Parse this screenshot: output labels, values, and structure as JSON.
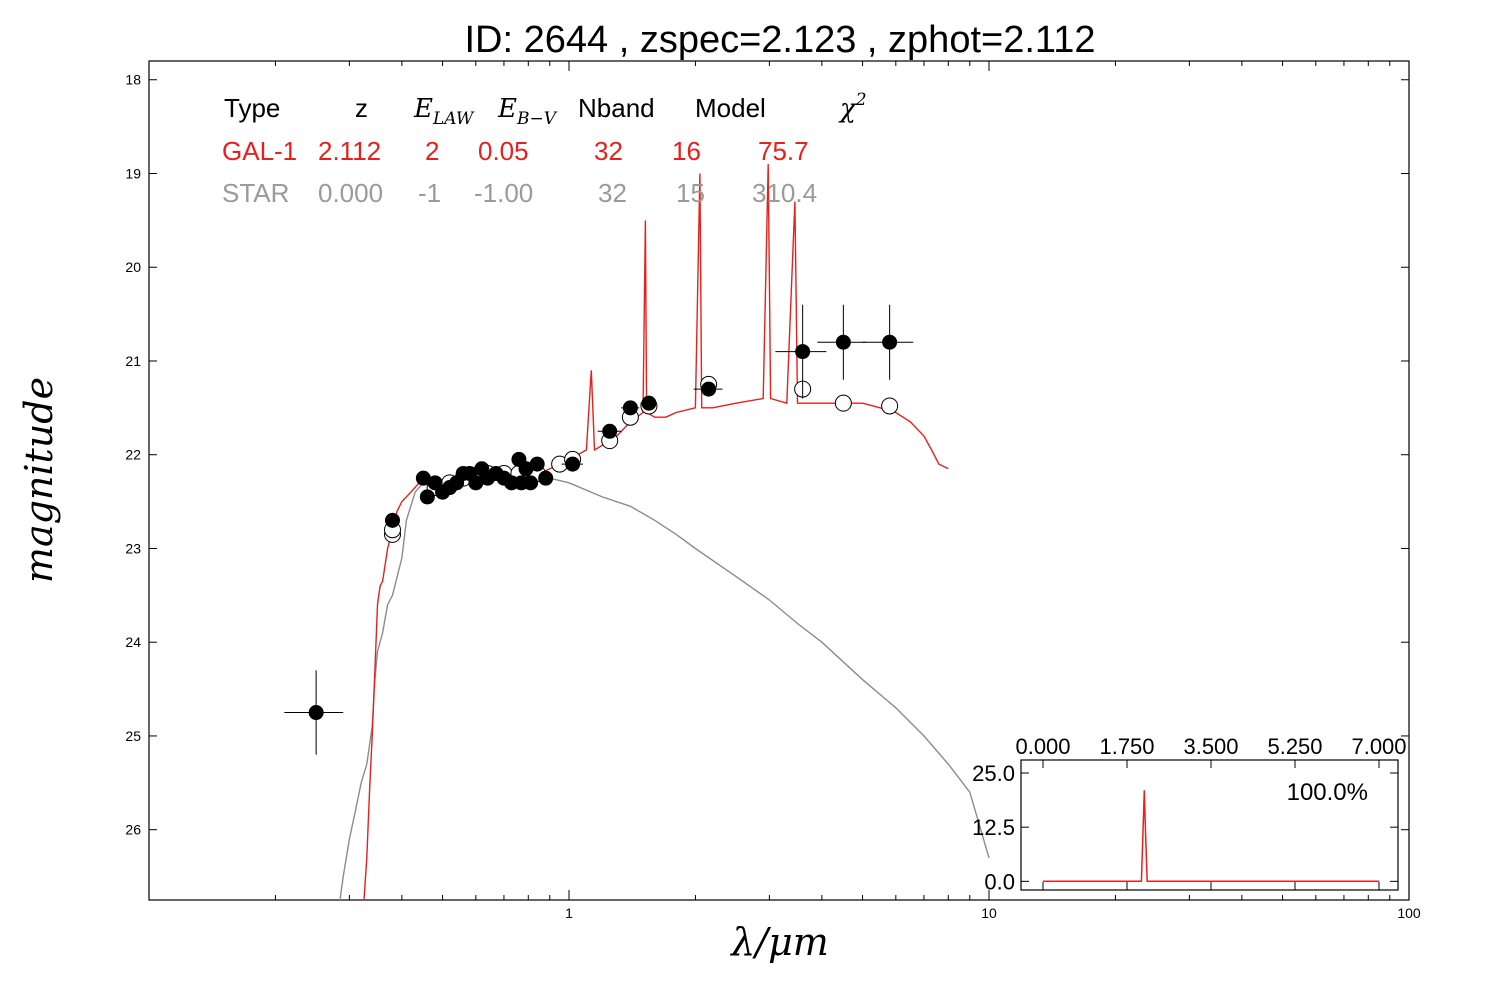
{
  "title": "ID:  2644  , zspec=2.123 , zphot=2.112",
  "colors": {
    "gal": "#e8201c",
    "star": "#8c8c8c",
    "axis": "#000000"
  },
  "chart_data": [
    {
      "type": "scatter",
      "xlabel": "λ/μm",
      "ylabel": "magnitude",
      "xscale": "log",
      "xlim": [
        0.1,
        100
      ],
      "ylim": [
        26.75,
        17.8
      ],
      "y_inverted": true,
      "xticks": [
        1,
        10,
        100
      ],
      "xtick_labels": [
        "1",
        "10",
        "100"
      ],
      "yticks": [
        18,
        19,
        20,
        21,
        22,
        23,
        24,
        25,
        26
      ],
      "ytick_labels": [
        "18",
        "19",
        "20",
        "21",
        "22",
        "23",
        "24",
        "25",
        "26"
      ],
      "grid": false,
      "table": {
        "headers": [
          "Type",
          "z",
          "E_LAW",
          "E_B−V",
          "Nband",
          "Model",
          "χ²"
        ],
        "rows": [
          {
            "type": "GAL-1",
            "z": "2.112",
            "elaw": "2",
            "ebv": "0.05",
            "nband": "32",
            "model": "16",
            "chi2": "75.7"
          },
          {
            "type": "STAR",
            "z": "0.000",
            "elaw": "-1",
            "ebv": "-1.00",
            "nband": "32",
            "model": "15",
            "chi2": "310.4"
          }
        ]
      },
      "observed": [
        {
          "x": 0.25,
          "y": 24.75,
          "xerr": [
            0.21,
            0.29
          ],
          "yerr": 0.45
        },
        {
          "x": 0.38,
          "y": 22.7,
          "xerr": [
            0.37,
            0.39
          ],
          "yerr": 0.08
        },
        {
          "x": 0.45,
          "y": 22.25,
          "xerr": [
            0.44,
            0.46
          ],
          "yerr": 0.05
        },
        {
          "x": 0.46,
          "y": 22.45,
          "xerr": [
            0.45,
            0.47
          ],
          "yerr": 0.05
        },
        {
          "x": 0.48,
          "y": 22.3,
          "xerr": [
            0.47,
            0.49
          ],
          "yerr": 0.05
        },
        {
          "x": 0.5,
          "y": 22.4,
          "xerr": [
            0.49,
            0.51
          ],
          "yerr": 0.05
        },
        {
          "x": 0.52,
          "y": 22.35,
          "xerr": [
            0.51,
            0.53
          ],
          "yerr": 0.05
        },
        {
          "x": 0.54,
          "y": 22.3,
          "xerr": [
            0.53,
            0.55
          ],
          "yerr": 0.05
        },
        {
          "x": 0.56,
          "y": 22.2,
          "xerr": [
            0.55,
            0.57
          ],
          "yerr": 0.05
        },
        {
          "x": 0.58,
          "y": 22.2,
          "xerr": [
            0.57,
            0.59
          ],
          "yerr": 0.05
        },
        {
          "x": 0.6,
          "y": 22.3,
          "xerr": [
            0.59,
            0.61
          ],
          "yerr": 0.05
        },
        {
          "x": 0.62,
          "y": 22.15,
          "xerr": [
            0.61,
            0.63
          ],
          "yerr": 0.05
        },
        {
          "x": 0.64,
          "y": 22.25,
          "xerr": [
            0.63,
            0.65
          ],
          "yerr": 0.05
        },
        {
          "x": 0.67,
          "y": 22.2,
          "xerr": [
            0.66,
            0.68
          ],
          "yerr": 0.05
        },
        {
          "x": 0.7,
          "y": 22.25,
          "xerr": [
            0.69,
            0.71
          ],
          "yerr": 0.05
        },
        {
          "x": 0.73,
          "y": 22.3,
          "xerr": [
            0.72,
            0.74
          ],
          "yerr": 0.05
        },
        {
          "x": 0.76,
          "y": 22.05,
          "xerr": [
            0.75,
            0.77
          ],
          "yerr": 0.05
        },
        {
          "x": 0.77,
          "y": 22.3,
          "xerr": [
            0.76,
            0.78
          ],
          "yerr": 0.05
        },
        {
          "x": 0.79,
          "y": 22.15,
          "xerr": [
            0.78,
            0.8
          ],
          "yerr": 0.05
        },
        {
          "x": 0.81,
          "y": 22.3,
          "xerr": [
            0.8,
            0.82
          ],
          "yerr": 0.05
        },
        {
          "x": 0.84,
          "y": 22.1,
          "xerr": [
            0.83,
            0.85
          ],
          "yerr": 0.05
        },
        {
          "x": 0.88,
          "y": 22.25,
          "xerr": [
            0.87,
            0.89
          ],
          "yerr": 0.05
        },
        {
          "x": 1.02,
          "y": 22.1,
          "xerr": [
            0.96,
            1.08
          ],
          "yerr": 0.08
        },
        {
          "x": 1.25,
          "y": 21.75,
          "xerr": [
            1.17,
            1.33
          ],
          "yerr": 0.05
        },
        {
          "x": 1.4,
          "y": 21.5,
          "xerr": [
            1.33,
            1.47
          ],
          "yerr": 0.05
        },
        {
          "x": 1.55,
          "y": 21.45,
          "xerr": [
            1.48,
            1.62
          ],
          "yerr": 0.05
        },
        {
          "x": 2.15,
          "y": 21.3,
          "xerr": [
            1.98,
            2.32
          ],
          "yerr": 0.05
        },
        {
          "x": 3.6,
          "y": 20.9,
          "xerr": [
            3.1,
            4.1
          ],
          "yerr": 0.5
        },
        {
          "x": 4.5,
          "y": 20.8,
          "xerr": [
            3.9,
            5.1
          ],
          "yerr": 0.4
        },
        {
          "x": 5.8,
          "y": 20.8,
          "xerr": [
            5.0,
            6.6
          ],
          "yerr": 0.4
        }
      ],
      "model_points": [
        {
          "x": 0.38,
          "y": 22.85
        },
        {
          "x": 0.38,
          "y": 22.8
        },
        {
          "x": 0.48,
          "y": 22.35
        },
        {
          "x": 0.52,
          "y": 22.3
        },
        {
          "x": 0.56,
          "y": 22.25
        },
        {
          "x": 0.6,
          "y": 22.22
        },
        {
          "x": 0.64,
          "y": 22.2
        },
        {
          "x": 0.7,
          "y": 22.2
        },
        {
          "x": 0.76,
          "y": 22.2
        },
        {
          "x": 0.84,
          "y": 22.2
        },
        {
          "x": 0.95,
          "y": 22.1
        },
        {
          "x": 1.02,
          "y": 22.05
        },
        {
          "x": 1.25,
          "y": 21.85
        },
        {
          "x": 1.4,
          "y": 21.6
        },
        {
          "x": 1.55,
          "y": 21.48
        },
        {
          "x": 2.15,
          "y": 21.25
        },
        {
          "x": 3.6,
          "y": 21.3
        },
        {
          "x": 4.5,
          "y": 21.45
        },
        {
          "x": 5.8,
          "y": 21.48
        }
      ],
      "gal_spectrum": [
        [
          0.325,
          26.75
        ],
        [
          0.33,
          26.3
        ],
        [
          0.335,
          25.6
        ],
        [
          0.34,
          25.0
        ],
        [
          0.345,
          24.3
        ],
        [
          0.35,
          23.6
        ],
        [
          0.355,
          23.4
        ],
        [
          0.36,
          23.35
        ],
        [
          0.37,
          23.0
        ],
        [
          0.38,
          22.8
        ],
        [
          0.39,
          22.6
        ],
        [
          0.4,
          22.5
        ],
        [
          0.42,
          22.4
        ],
        [
          0.44,
          22.3
        ],
        [
          0.47,
          22.32
        ],
        [
          0.5,
          22.3
        ],
        [
          0.55,
          22.27
        ],
        [
          0.6,
          22.25
        ],
        [
          0.65,
          22.25
        ],
        [
          0.7,
          22.27
        ],
        [
          0.75,
          22.25
        ],
        [
          0.8,
          22.22
        ],
        [
          0.85,
          22.2
        ],
        [
          0.9,
          22.15
        ],
        [
          0.95,
          22.1
        ],
        [
          1.0,
          22.0
        ],
        [
          1.05,
          22.0
        ],
        [
          1.1,
          21.95
        ],
        [
          1.13,
          21.1
        ],
        [
          1.15,
          21.95
        ],
        [
          1.2,
          21.9
        ],
        [
          1.3,
          21.8
        ],
        [
          1.4,
          21.65
        ],
        [
          1.5,
          21.55
        ],
        [
          1.52,
          19.5
        ],
        [
          1.53,
          21.55
        ],
        [
          1.6,
          21.6
        ],
        [
          1.7,
          21.6
        ],
        [
          1.8,
          21.55
        ],
        [
          2.0,
          21.5
        ],
        [
          2.05,
          19.0
        ],
        [
          2.07,
          21.5
        ],
        [
          2.2,
          21.5
        ],
        [
          2.5,
          21.45
        ],
        [
          2.9,
          21.4
        ],
        [
          2.98,
          18.9
        ],
        [
          3.02,
          21.4
        ],
        [
          3.3,
          21.45
        ],
        [
          3.45,
          19.3
        ],
        [
          3.5,
          21.45
        ],
        [
          4.0,
          21.45
        ],
        [
          4.5,
          21.45
        ],
        [
          5.0,
          21.45
        ],
        [
          5.5,
          21.5
        ],
        [
          6.0,
          21.55
        ],
        [
          6.5,
          21.65
        ],
        [
          7.0,
          21.8
        ],
        [
          7.3,
          21.95
        ],
        [
          7.6,
          22.1
        ],
        [
          8.0,
          22.15
        ]
      ],
      "star_spectrum": [
        [
          0.285,
          26.75
        ],
        [
          0.29,
          26.5
        ],
        [
          0.3,
          26.1
        ],
        [
          0.31,
          25.8
        ],
        [
          0.32,
          25.5
        ],
        [
          0.33,
          25.3
        ],
        [
          0.34,
          24.9
        ],
        [
          0.345,
          24.4
        ],
        [
          0.35,
          24.1
        ],
        [
          0.36,
          23.9
        ],
        [
          0.37,
          23.6
        ],
        [
          0.38,
          23.5
        ],
        [
          0.39,
          23.3
        ],
        [
          0.4,
          23.1
        ],
        [
          0.41,
          22.7
        ],
        [
          0.43,
          22.4
        ],
        [
          0.45,
          22.3
        ],
        [
          0.5,
          22.3
        ],
        [
          0.55,
          22.28
        ],
        [
          0.6,
          22.25
        ],
        [
          0.7,
          22.25
        ],
        [
          0.8,
          22.25
        ],
        [
          0.9,
          22.25
        ],
        [
          1.0,
          22.3
        ],
        [
          1.2,
          22.45
        ],
        [
          1.4,
          22.55
        ],
        [
          1.6,
          22.7
        ],
        [
          1.8,
          22.85
        ],
        [
          2.0,
          23.0
        ],
        [
          2.5,
          23.3
        ],
        [
          3.0,
          23.55
        ],
        [
          3.5,
          23.8
        ],
        [
          4.0,
          24.0
        ],
        [
          5.0,
          24.4
        ],
        [
          6.0,
          24.7
        ],
        [
          7.0,
          25.0
        ],
        [
          8.0,
          25.3
        ],
        [
          9.0,
          25.6
        ],
        [
          10.0,
          26.3
        ]
      ]
    },
    {
      "type": "line",
      "xlim": [
        0,
        7
      ],
      "ylim": [
        -2,
        28
      ],
      "xticks": [
        0,
        1.75,
        3.5,
        5.25,
        7
      ],
      "xtick_labels": [
        "0.000",
        "1.750",
        "3.500",
        "5.250",
        "7.000"
      ],
      "yticks": [
        0,
        12.5,
        25
      ],
      "ytick_labels": [
        "0.0",
        "12.5",
        "25.0"
      ],
      "annotation": "100.0%",
      "x": [
        0,
        2.05,
        2.08,
        2.11,
        2.14,
        2.17,
        7
      ],
      "y": [
        0,
        0,
        10,
        21,
        10,
        0,
        0
      ]
    }
  ]
}
